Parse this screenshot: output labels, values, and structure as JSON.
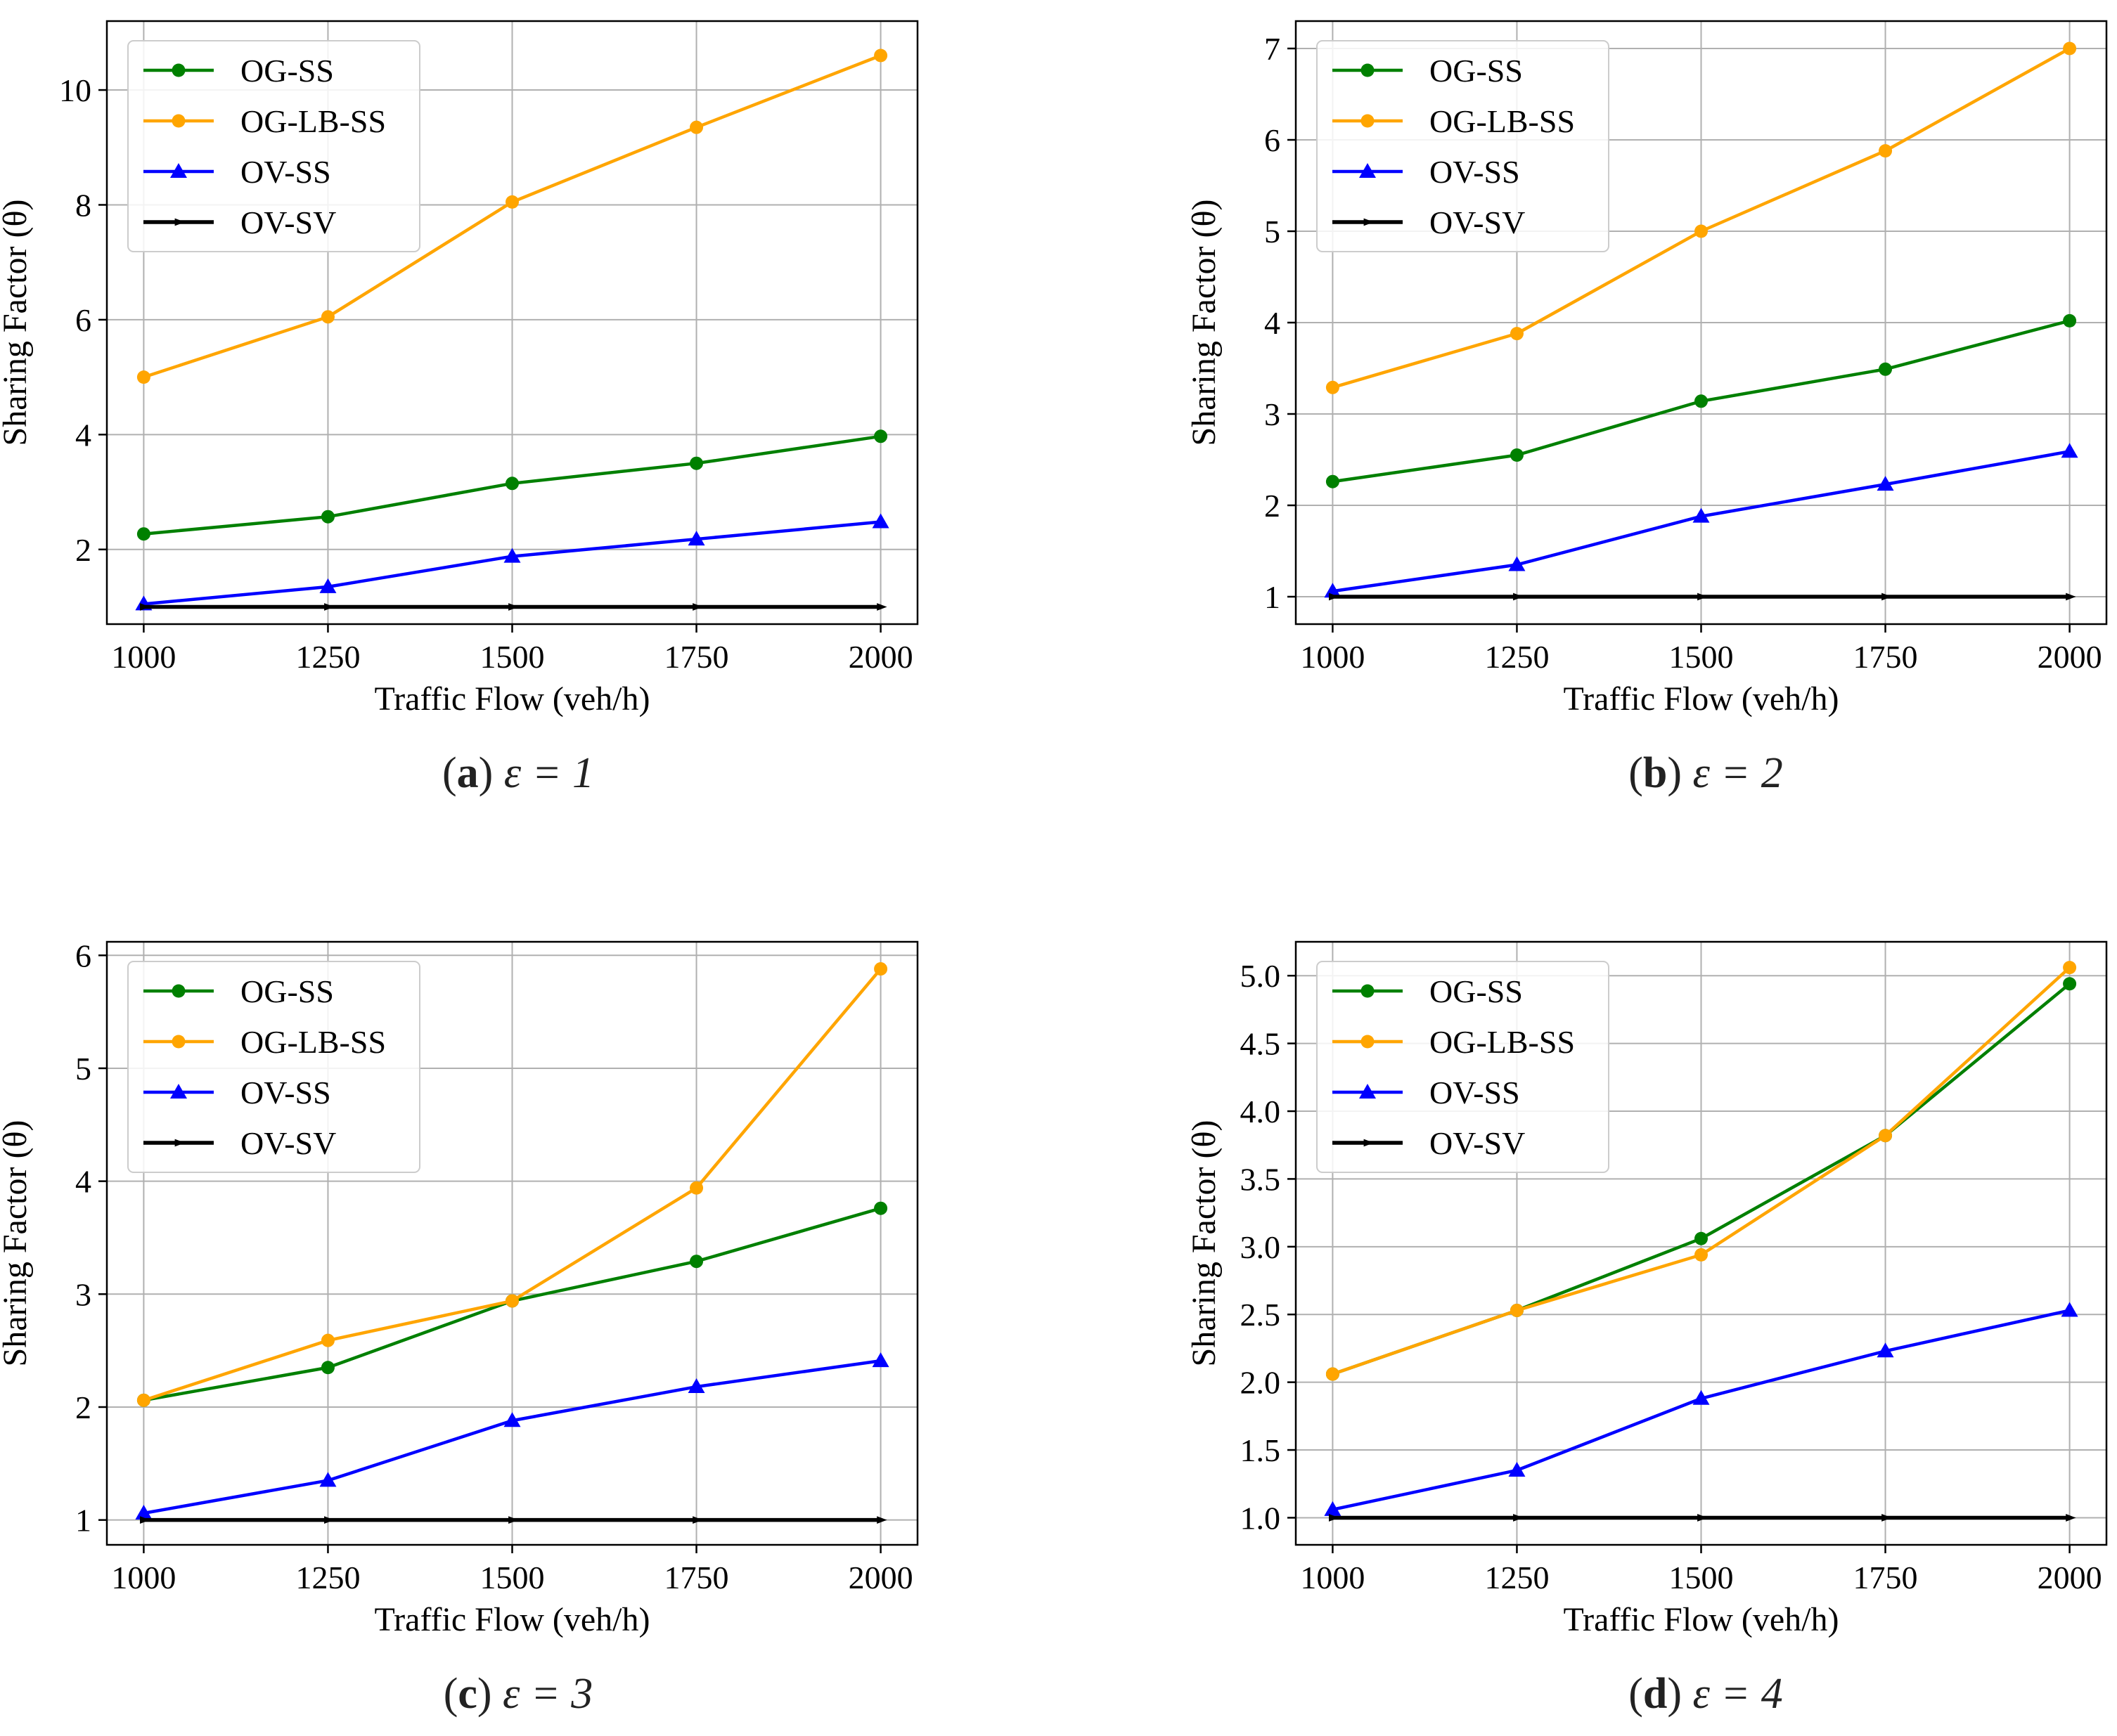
{
  "series_styles": [
    {
      "name": "OG-SS",
      "color": "#008000",
      "marker": "circle"
    },
    {
      "name": "OG-LB-SS",
      "color": "#FFA500",
      "marker": "circle"
    },
    {
      "name": "OV-SS",
      "color": "#0000FF",
      "marker": "triangle"
    },
    {
      "name": "OV-SV",
      "color": "#000000",
      "marker": "tri-right"
    }
  ],
  "chart_data": [
    {
      "type": "line",
      "caption": {
        "label": "(a)",
        "letter": "a",
        "expr": "ε = 1"
      },
      "xlabel": "Traffic Flow (veh/h)",
      "ylabel": "Sharing Factor (θ)",
      "x": [
        1000,
        1250,
        1500,
        1750,
        2000
      ],
      "xticks": [
        "1000",
        "1250",
        "1500",
        "1750",
        "2000"
      ],
      "xlim": [
        950,
        2050
      ],
      "ylim": [
        0.7,
        11.2
      ],
      "yticks": [
        2,
        4,
        6,
        8,
        10
      ],
      "ytick_labels": [
        "2",
        "4",
        "6",
        "8",
        "10"
      ],
      "grid": true,
      "legend": "top-left",
      "series": [
        {
          "name": "OG-SS",
          "values": [
            2.27,
            2.57,
            3.15,
            3.5,
            3.97
          ]
        },
        {
          "name": "OG-LB-SS",
          "values": [
            5.0,
            6.05,
            8.05,
            9.35,
            10.6
          ]
        },
        {
          "name": "OV-SS",
          "values": [
            1.05,
            1.35,
            1.88,
            2.18,
            2.48
          ]
        },
        {
          "name": "OV-SV",
          "values": [
            1.0,
            1.0,
            1.0,
            1.0,
            1.0
          ]
        }
      ]
    },
    {
      "type": "line",
      "caption": {
        "label": "(b)",
        "letter": "b",
        "expr": "ε = 2"
      },
      "xlabel": "Traffic Flow (veh/h)",
      "ylabel": "Sharing Factor (θ)",
      "x": [
        1000,
        1250,
        1500,
        1750,
        2000
      ],
      "xticks": [
        "1000",
        "1250",
        "1500",
        "1750",
        "2000"
      ],
      "xlim": [
        950,
        2050
      ],
      "ylim": [
        0.7,
        7.3
      ],
      "yticks": [
        1,
        2,
        3,
        4,
        5,
        6,
        7
      ],
      "ytick_labels": [
        "1",
        "2",
        "3",
        "4",
        "5",
        "6",
        "7"
      ],
      "grid": true,
      "legend": "top-left",
      "series": [
        {
          "name": "OG-SS",
          "values": [
            2.26,
            2.55,
            3.14,
            3.49,
            4.02
          ]
        },
        {
          "name": "OG-LB-SS",
          "values": [
            3.29,
            3.88,
            5.0,
            5.88,
            7.0
          ]
        },
        {
          "name": "OV-SS",
          "values": [
            1.06,
            1.35,
            1.88,
            2.23,
            2.59
          ]
        },
        {
          "name": "OV-SV",
          "values": [
            1.0,
            1.0,
            1.0,
            1.0,
            1.0
          ]
        }
      ]
    },
    {
      "type": "line",
      "caption": {
        "label": "(c)",
        "letter": "c",
        "expr": "ε = 3"
      },
      "xlabel": "Traffic Flow (veh/h)",
      "ylabel": "Sharing Factor (θ)",
      "x": [
        1000,
        1250,
        1500,
        1750,
        2000
      ],
      "xticks": [
        "1000",
        "1250",
        "1500",
        "1750",
        "2000"
      ],
      "xlim": [
        950,
        2050
      ],
      "ylim": [
        0.78,
        6.12
      ],
      "yticks": [
        1,
        2,
        3,
        4,
        5,
        6
      ],
      "ytick_labels": [
        "1",
        "2",
        "3",
        "4",
        "5",
        "6"
      ],
      "grid": true,
      "legend": "top-left",
      "series": [
        {
          "name": "OG-SS",
          "values": [
            2.06,
            2.35,
            2.94,
            3.29,
            3.76
          ]
        },
        {
          "name": "OG-LB-SS",
          "values": [
            2.06,
            2.59,
            2.94,
            3.94,
            5.88
          ]
        },
        {
          "name": "OV-SS",
          "values": [
            1.06,
            1.35,
            1.88,
            2.18,
            2.41
          ]
        },
        {
          "name": "OV-SV",
          "values": [
            1.0,
            1.0,
            1.0,
            1.0,
            1.0
          ]
        }
      ]
    },
    {
      "type": "line",
      "caption": {
        "label": "(d)",
        "letter": "d",
        "expr": "ε = 4"
      },
      "xlabel": "Traffic Flow (veh/h)",
      "ylabel": "Sharing Factor (θ)",
      "x": [
        1000,
        1250,
        1500,
        1750,
        2000
      ],
      "xticks": [
        "1000",
        "1250",
        "1500",
        "1750",
        "2000"
      ],
      "xlim": [
        950,
        2050
      ],
      "ylim": [
        0.8,
        5.25
      ],
      "yticks": [
        1.0,
        1.5,
        2.0,
        2.5,
        3.0,
        3.5,
        4.0,
        4.5,
        5.0
      ],
      "ytick_labels": [
        "1.0",
        "1.5",
        "2.0",
        "2.5",
        "3.0",
        "3.5",
        "4.0",
        "4.5",
        "5.0"
      ],
      "grid": true,
      "legend": "top-left",
      "series": [
        {
          "name": "OG-SS",
          "values": [
            2.06,
            2.53,
            3.06,
            3.82,
            4.94
          ]
        },
        {
          "name": "OG-LB-SS",
          "values": [
            2.06,
            2.53,
            2.94,
            3.82,
            5.06
          ]
        },
        {
          "name": "OV-SS",
          "values": [
            1.06,
            1.35,
            1.88,
            2.23,
            2.53
          ]
        },
        {
          "name": "OV-SV",
          "values": [
            1.0,
            1.0,
            1.0,
            1.0,
            1.0
          ]
        }
      ]
    }
  ]
}
